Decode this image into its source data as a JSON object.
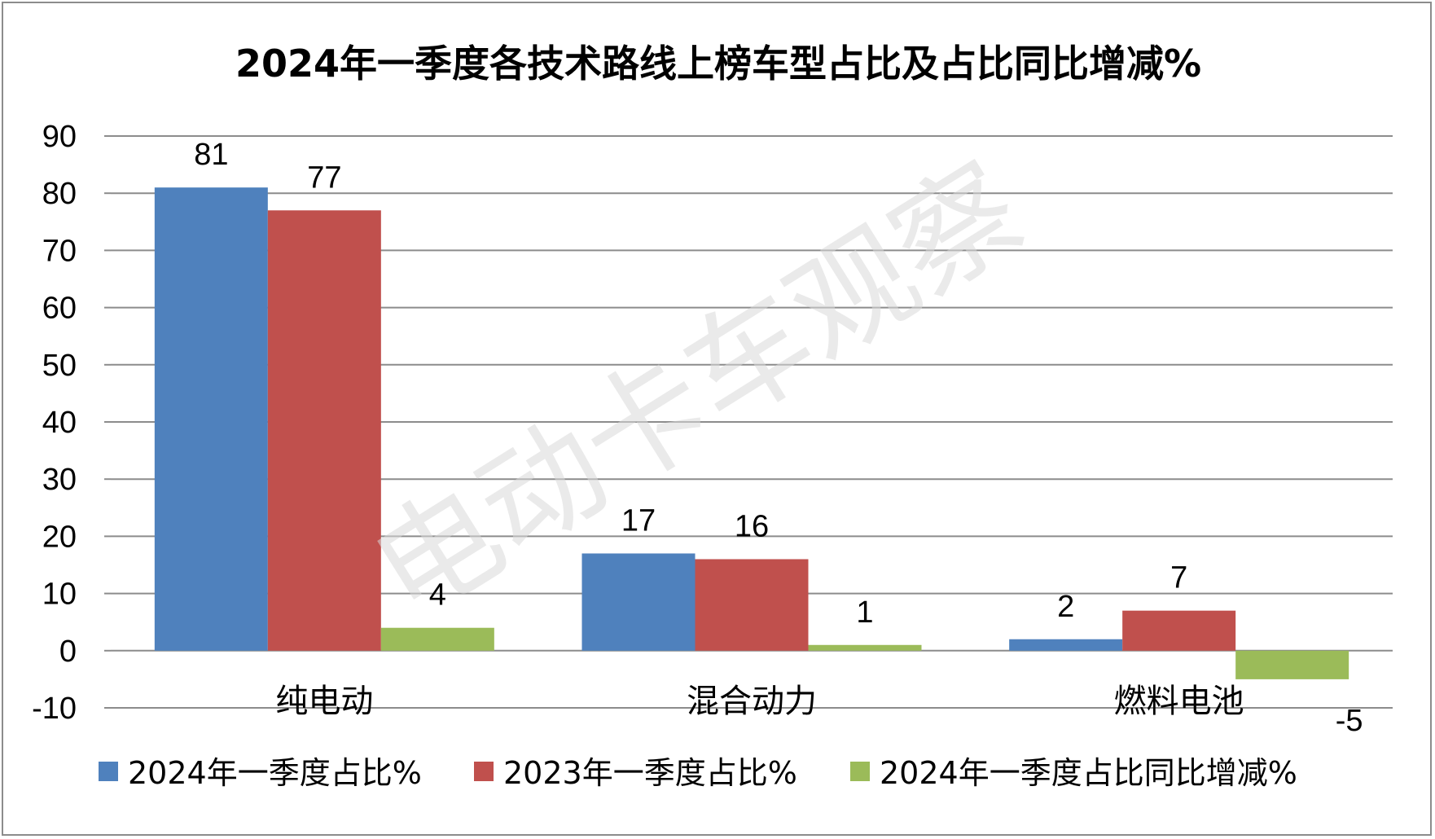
{
  "chart_data": {
    "type": "bar",
    "title": "2024年一季度各技术路线上榜车型占比及占比同比增减%",
    "categories": [
      "纯电动",
      "混合动力",
      "燃料电池"
    ],
    "series": [
      {
        "name": "2024年一季度占比%",
        "values": [
          81,
          17,
          2
        ],
        "color": "#4f81bd"
      },
      {
        "name": "2023年一季度占比%",
        "values": [
          77,
          16,
          7
        ],
        "color": "#c0504d"
      },
      {
        "name": "2024年一季度占比同比增减%",
        "values": [
          4,
          1,
          -5
        ],
        "color": "#9bbb59"
      }
    ],
    "ylim": [
      -10,
      90
    ],
    "yticks": [
      90,
      80,
      70,
      60,
      50,
      40,
      30,
      20,
      10,
      0,
      -10
    ],
    "grid": true,
    "legend_position": "bottom",
    "data_labels": true
  },
  "watermark": "电动卡车观察"
}
